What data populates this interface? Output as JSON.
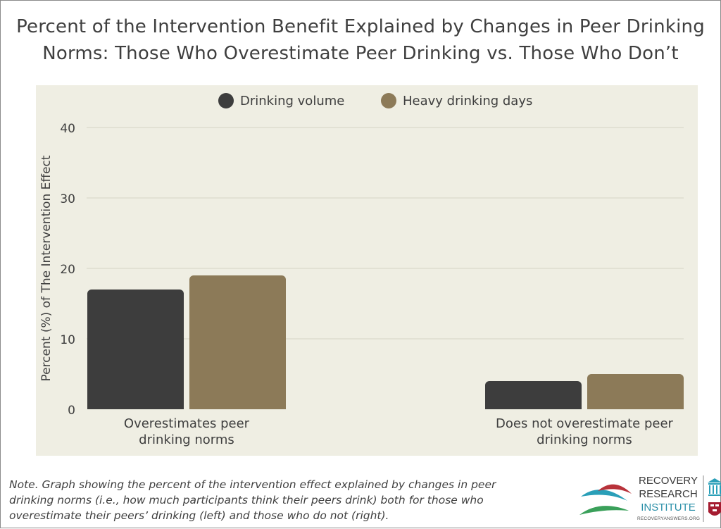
{
  "header": {
    "title_line1": "Percent of the Intervention Benefit Explained by Changes in Peer Drinking",
    "title_line2": "Norms: Those Who Overestimate Peer Drinking vs. Those Who Don’t"
  },
  "chart_data": {
    "type": "bar",
    "categories": [
      [
        "Overestimates peer",
        "drinking norms"
      ],
      [
        "Does not overestimate peer",
        "drinking norms"
      ]
    ],
    "series": [
      {
        "name": "Drinking volume",
        "values": [
          17,
          4
        ],
        "color": "#3d3d3d"
      },
      {
        "name": "Heavy drinking days",
        "values": [
          19,
          5
        ],
        "color": "#8c7a58"
      }
    ],
    "ylabel": "Percent (%) of The Intervention Effect",
    "xlabel": "",
    "ylim": [
      0,
      40
    ],
    "yticks": [
      0,
      10,
      20,
      30,
      40
    ],
    "grid": true,
    "legend_position": "top-center",
    "background": "#efeee3"
  },
  "note": "Note. Graph showing the percent of the intervention effect explained by changes in peer drinking norms (i.e., how much participants think their peers drink) both for those who overestimate their peers’ drinking (left) and those who do not (right).",
  "logo": {
    "line1": "RECOVERY",
    "line2": "RESEARCH",
    "line3": "INSTITUTE",
    "url": "RECOVERYANSWERS.ORG"
  }
}
